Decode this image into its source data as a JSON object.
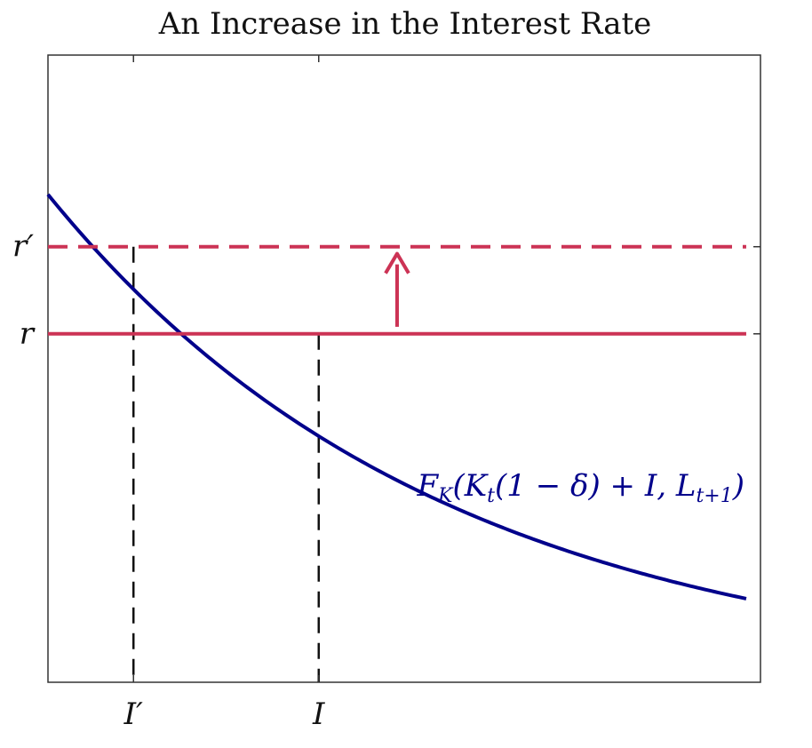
{
  "chart_data": {
    "type": "line",
    "title": "An Increase in the Interest Rate",
    "xlabel": "",
    "ylabel": "",
    "x_ticks": [
      {
        "label": "I′",
        "value": 0.12
      },
      {
        "label": "I",
        "value": 0.38
      }
    ],
    "y_ticks": [
      {
        "label": "r′",
        "value": 0.625
      },
      {
        "label": "r",
        "value": 0.5
      }
    ],
    "xlim": [
      0,
      1
    ],
    "ylim": [
      0,
      0.9
    ],
    "grid": false,
    "series": [
      {
        "name": "F_K(K_t(1 − δ) + I, L_{t+1})",
        "label_text": "F",
        "label_sub": "K",
        "label_rest": "(K",
        "label_sub2": "t",
        "label_mid": "(1 − δ) + I, L",
        "label_sub3": "t+1",
        "label_end": ")",
        "color": "#00008b",
        "style": "solid",
        "curve": {
          "a": 0.7,
          "k": 1.8
        },
        "x_range": [
          0,
          0.98
        ]
      },
      {
        "name": "r",
        "color": "#cc3355",
        "style": "solid",
        "y": 0.5,
        "x_range": [
          0,
          0.98
        ]
      },
      {
        "name": "r′",
        "color": "#cc3355",
        "style": "dashed",
        "y": 0.625,
        "x_range": [
          0,
          0.98
        ]
      }
    ],
    "annotations": [
      {
        "type": "arrow",
        "x": 0.49,
        "from_y": 0.51,
        "to_y": 0.615,
        "color": "#cc3355"
      },
      {
        "type": "dropline",
        "x": 0.12,
        "y": 0.625,
        "color": "#111111",
        "style": "dashed"
      },
      {
        "type": "dropline",
        "x": 0.38,
        "y": 0.5,
        "color": "#111111",
        "style": "dashed"
      }
    ]
  }
}
